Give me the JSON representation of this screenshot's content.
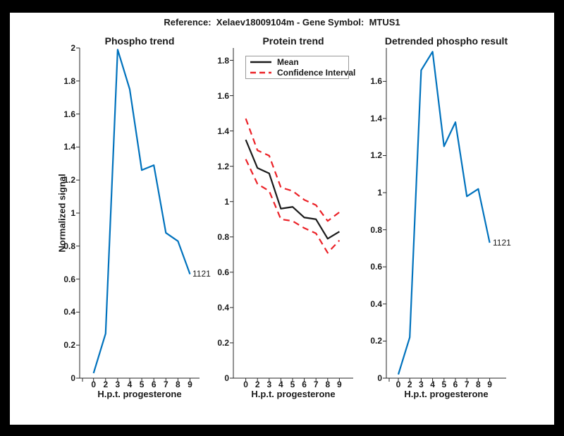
{
  "figure": {
    "title": "Reference:  Xelaev18009104m - Gene Symbol:  MTUS1"
  },
  "colors": {
    "line_blue": "#0072BD",
    "ci_red": "#EB2127",
    "mean_black": "#1A1A1A",
    "axis": "#262626",
    "text": "#1A1A1A",
    "frame": "#000000",
    "legend_border": "#999999"
  },
  "chart_data": [
    {
      "type": "line",
      "title": "Phospho trend",
      "xlabel": "H.p.t. progesterone",
      "ylabel": "Normalized signal",
      "categories": [
        0,
        2,
        3,
        4,
        5,
        6,
        7,
        8,
        9
      ],
      "x_tick_labels": [
        "0",
        "2",
        "3",
        "4",
        "5",
        "6",
        "7",
        "8",
        "9"
      ],
      "y_tick_labels": [
        "0",
        "0.2",
        "0.4",
        "0.6",
        "0.8",
        "1",
        "1.2",
        "1.4",
        "1.6",
        "1.8",
        "2"
      ],
      "ylim": [
        0,
        2
      ],
      "values": [
        0.03,
        0.27,
        1.99,
        1.75,
        1.26,
        1.29,
        0.88,
        0.83,
        0.63
      ],
      "series_color": "line_blue",
      "annotation": {
        "label": "1121",
        "x": 9,
        "y": 0.63
      },
      "grid": false
    },
    {
      "type": "line",
      "title": "Protein trend",
      "xlabel": "H.p.t. progesterone",
      "categories": [
        0,
        2,
        3,
        4,
        5,
        6,
        7,
        8,
        9
      ],
      "x_tick_labels": [
        "0",
        "2",
        "3",
        "4",
        "5",
        "6",
        "7",
        "8",
        "9"
      ],
      "y_tick_labels": [
        "0",
        "0.2",
        "0.4",
        "0.6",
        "0.8",
        "1",
        "1.2",
        "1.4",
        "1.6",
        "1.8"
      ],
      "ylim": [
        0,
        1.87
      ],
      "series": [
        {
          "name": "Confidence Interval",
          "role": "ci-upper",
          "dash": "dashed",
          "color": "ci_red",
          "values": [
            1.47,
            1.29,
            1.26,
            1.08,
            1.06,
            1.01,
            0.98,
            0.89,
            0.94
          ]
        },
        {
          "name": "Confidence Interval",
          "role": "ci-lower",
          "dash": "dashed",
          "color": "ci_red",
          "values": [
            1.24,
            1.1,
            1.06,
            0.9,
            0.89,
            0.85,
            0.82,
            0.71,
            0.78
          ]
        },
        {
          "name": "Mean",
          "role": "mean",
          "dash": "solid",
          "color": "mean_black",
          "values": [
            1.35,
            1.19,
            1.16,
            0.96,
            0.97,
            0.91,
            0.9,
            0.79,
            0.83
          ]
        }
      ],
      "legend": {
        "position": "northwest",
        "items": [
          "Mean",
          "Confidence Interval"
        ]
      },
      "grid": false
    },
    {
      "type": "line",
      "title": "Detrended phospho result",
      "xlabel": "H.p.t. progesterone",
      "categories": [
        0,
        2,
        3,
        4,
        5,
        6,
        7,
        8,
        9
      ],
      "x_tick_labels": [
        "0",
        "2",
        "3",
        "4",
        "5",
        "6",
        "7",
        "8",
        "9"
      ],
      "y_tick_labels": [
        "0",
        "0.2",
        "0.4",
        "0.6",
        "0.8",
        "1",
        "1.2",
        "1.4",
        "1.6"
      ],
      "ylim": [
        0,
        1.78
      ],
      "values": [
        0.02,
        0.22,
        1.66,
        1.76,
        1.25,
        1.38,
        0.98,
        1.02,
        0.73
      ],
      "series_color": "line_blue",
      "annotation": {
        "label": "1121",
        "x": 9,
        "y": 0.73
      },
      "grid": false
    }
  ]
}
